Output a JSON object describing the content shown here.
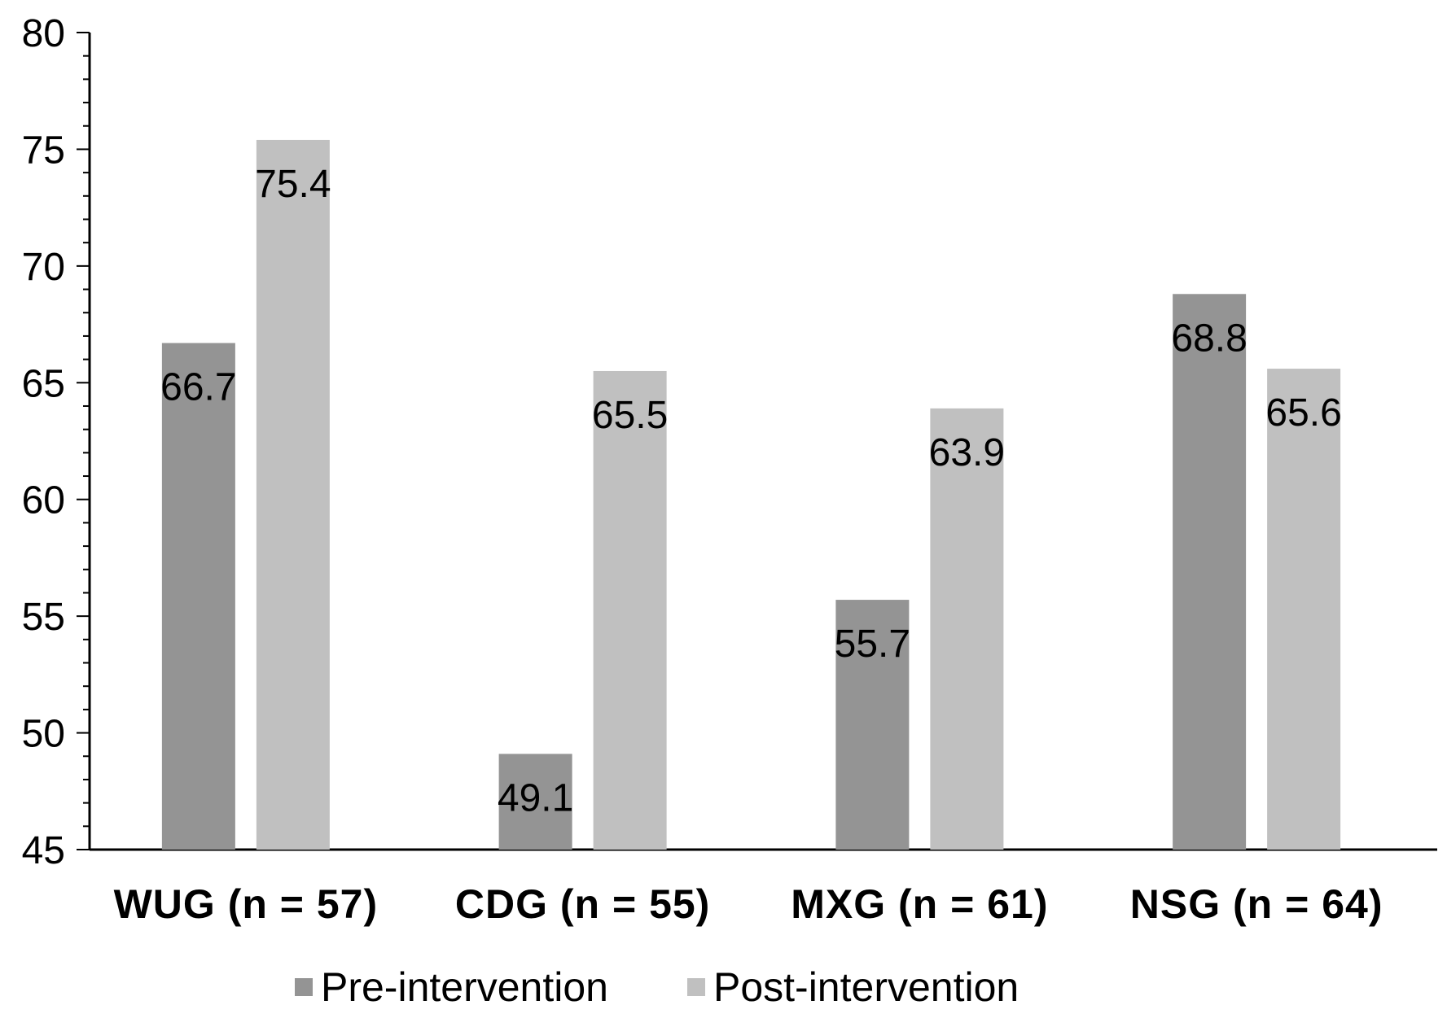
{
  "chart_data": {
    "type": "bar",
    "categories": [
      "WUG (n = 57)",
      "CDG (n = 55)",
      "MXG (n = 61)",
      "NSG (n = 64)"
    ],
    "series": [
      {
        "name": "Pre-intervention",
        "values": [
          66.7,
          49.1,
          55.7,
          68.8
        ],
        "color": "#949494"
      },
      {
        "name": "Post-intervention",
        "values": [
          75.4,
          65.5,
          63.9,
          65.6
        ],
        "color": "#c0c0c0"
      }
    ],
    "ylim": [
      45,
      80
    ],
    "yticks": [
      45,
      50,
      55,
      60,
      65,
      70,
      75,
      80
    ],
    "title": "",
    "xlabel": "",
    "ylabel": "",
    "grid": false,
    "legend_position": "bottom"
  }
}
